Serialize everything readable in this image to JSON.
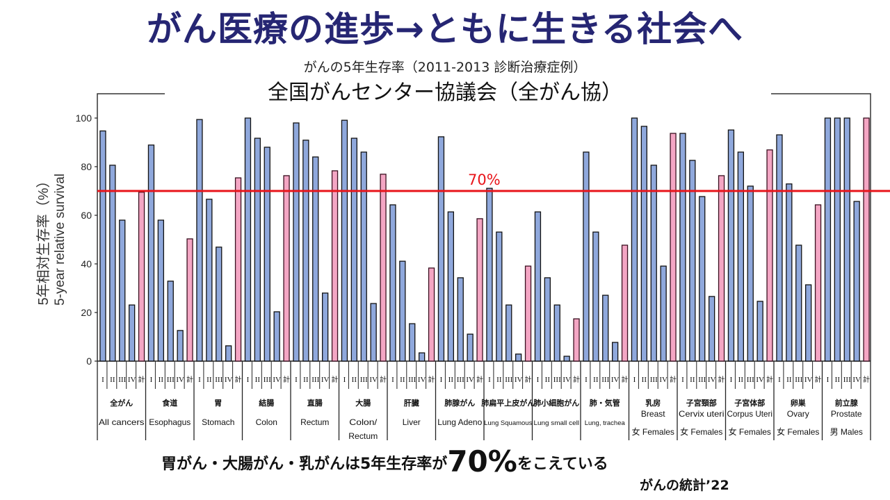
{
  "header": {
    "title": "がん医療の進歩→ともに生きる社会へ",
    "subtitle": "がんの5年生存率（2011-2013 診断治療症例）",
    "org": "全国がんセンター協議会（全がん協）"
  },
  "footer": {
    "note_before": "胃がん・大腸がん・乳がんは5年生存率が",
    "note_big": "70%",
    "note_after": "をこえている",
    "source": "がんの統計’22"
  },
  "colors": {
    "stage_bar": "#8fa8dc",
    "total_bar": "#f4a6c4",
    "reference_line": "#e8141a",
    "title": "#262673"
  },
  "chart_data": {
    "type": "bar",
    "title": "がんの5年生存率（2011-2013 診断治療症例）",
    "ylabel_jp": "5年相対生存率（%）",
    "ylabel_en": "5-year relative survival",
    "ylim": [
      0,
      100
    ],
    "yticks": [
      0,
      20,
      40,
      60,
      80,
      100
    ],
    "grid": false,
    "stage_labels": [
      "I",
      "II",
      "III",
      "IV",
      "計"
    ],
    "reference_line": {
      "value": 70,
      "label": "70%"
    },
    "groups": [
      {
        "jp": "全がん",
        "en": "All cancers",
        "sex": "",
        "values": [
          94.7,
          80.6,
          58.0,
          23.1,
          69.5
        ]
      },
      {
        "jp": "食道",
        "en": "Esophagus",
        "sex": "",
        "values": [
          88.9,
          58.0,
          32.9,
          12.6,
          50.3
        ]
      },
      {
        "jp": "胃",
        "en": "Stomach",
        "sex": "",
        "values": [
          99.4,
          66.6,
          46.9,
          6.3,
          75.4
        ]
      },
      {
        "jp": "結腸",
        "en": "Colon",
        "sex": "",
        "values": [
          100.0,
          91.7,
          88.0,
          20.3,
          76.3
        ]
      },
      {
        "jp": "直腸",
        "en": "Rectum",
        "sex": "",
        "values": [
          98.0,
          90.9,
          84.0,
          28.0,
          78.3
        ]
      },
      {
        "jp": "大腸",
        "en": "Colon/ Rectum",
        "sex": "",
        "values": [
          99.1,
          91.7,
          86.0,
          23.7,
          76.9
        ]
      },
      {
        "jp": "肝臓",
        "en": "Liver",
        "sex": "",
        "values": [
          64.3,
          41.1,
          15.4,
          3.4,
          38.3
        ]
      },
      {
        "jp": "肺腺がん",
        "en": "Lung Adeno",
        "sex": "",
        "values": [
          92.3,
          61.4,
          34.3,
          11.1,
          58.6
        ]
      },
      {
        "jp": "肺扁平上皮がん",
        "en": "Lung Squamous",
        "sex": "",
        "values": [
          71.1,
          53.1,
          23.1,
          2.9,
          39.1
        ]
      },
      {
        "jp": "肺小細胞がん",
        "en": "Lung small cell",
        "sex": "",
        "values": [
          61.4,
          34.3,
          23.1,
          2.0,
          17.4
        ]
      },
      {
        "jp": "肺・気管",
        "en": "Lung, trachea",
        "sex": "",
        "values": [
          86.0,
          53.1,
          27.1,
          7.7,
          47.7
        ]
      },
      {
        "jp": "乳房",
        "en": "Breast",
        "sex": "女 Females",
        "values": [
          100.0,
          96.6,
          80.6,
          39.1,
          93.7
        ]
      },
      {
        "jp": "子宮頸部",
        "en": "Cervix uteri",
        "sex": "女 Females",
        "values": [
          93.7,
          82.6,
          67.7,
          26.6,
          76.3
        ]
      },
      {
        "jp": "子宮体部",
        "en": "Corpus Uteri",
        "sex": "女 Females",
        "values": [
          95.1,
          86.0,
          72.0,
          24.6,
          86.9
        ]
      },
      {
        "jp": "卵巣",
        "en": "Ovary",
        "sex": "女 Females",
        "values": [
          93.1,
          72.9,
          47.7,
          31.4,
          64.3
        ]
      },
      {
        "jp": "前立腺",
        "en": "Prostate",
        "sex": "男 Males",
        "values": [
          100.0,
          100.0,
          100.0,
          65.7,
          100.0
        ]
      }
    ]
  }
}
